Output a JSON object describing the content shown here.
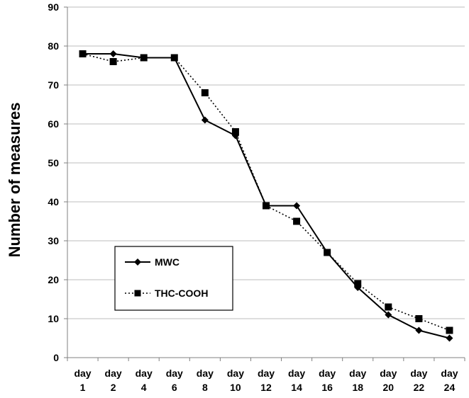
{
  "chart_data": {
    "type": "line",
    "title": "",
    "xlabel": "",
    "ylabel": "Number of measures",
    "ylim": [
      0,
      90
    ],
    "ytick_step": 10,
    "grid": true,
    "legend_position": "lower-left",
    "categories": [
      [
        "day",
        "1"
      ],
      [
        "day",
        "2"
      ],
      [
        "day",
        "4"
      ],
      [
        "day",
        "6"
      ],
      [
        "day",
        "8"
      ],
      [
        "day",
        "10"
      ],
      [
        "day",
        "12"
      ],
      [
        "day",
        "14"
      ],
      [
        "day",
        "16"
      ],
      [
        "day",
        "18"
      ],
      [
        "day",
        "20"
      ],
      [
        "day",
        "22"
      ],
      [
        "day",
        "24"
      ]
    ],
    "series": [
      {
        "name": "MWC",
        "marker": "diamond",
        "line_style": "solid",
        "color": "#000000",
        "values": [
          78,
          78,
          77,
          77,
          61,
          57,
          39,
          39,
          27,
          18,
          11,
          7,
          5
        ]
      },
      {
        "name": "THC-COOH",
        "marker": "square",
        "line_style": "dotted",
        "color": "#000000",
        "values": [
          78,
          76,
          77,
          77,
          68,
          58,
          39,
          35,
          27,
          19,
          13,
          10,
          7
        ]
      }
    ]
  }
}
